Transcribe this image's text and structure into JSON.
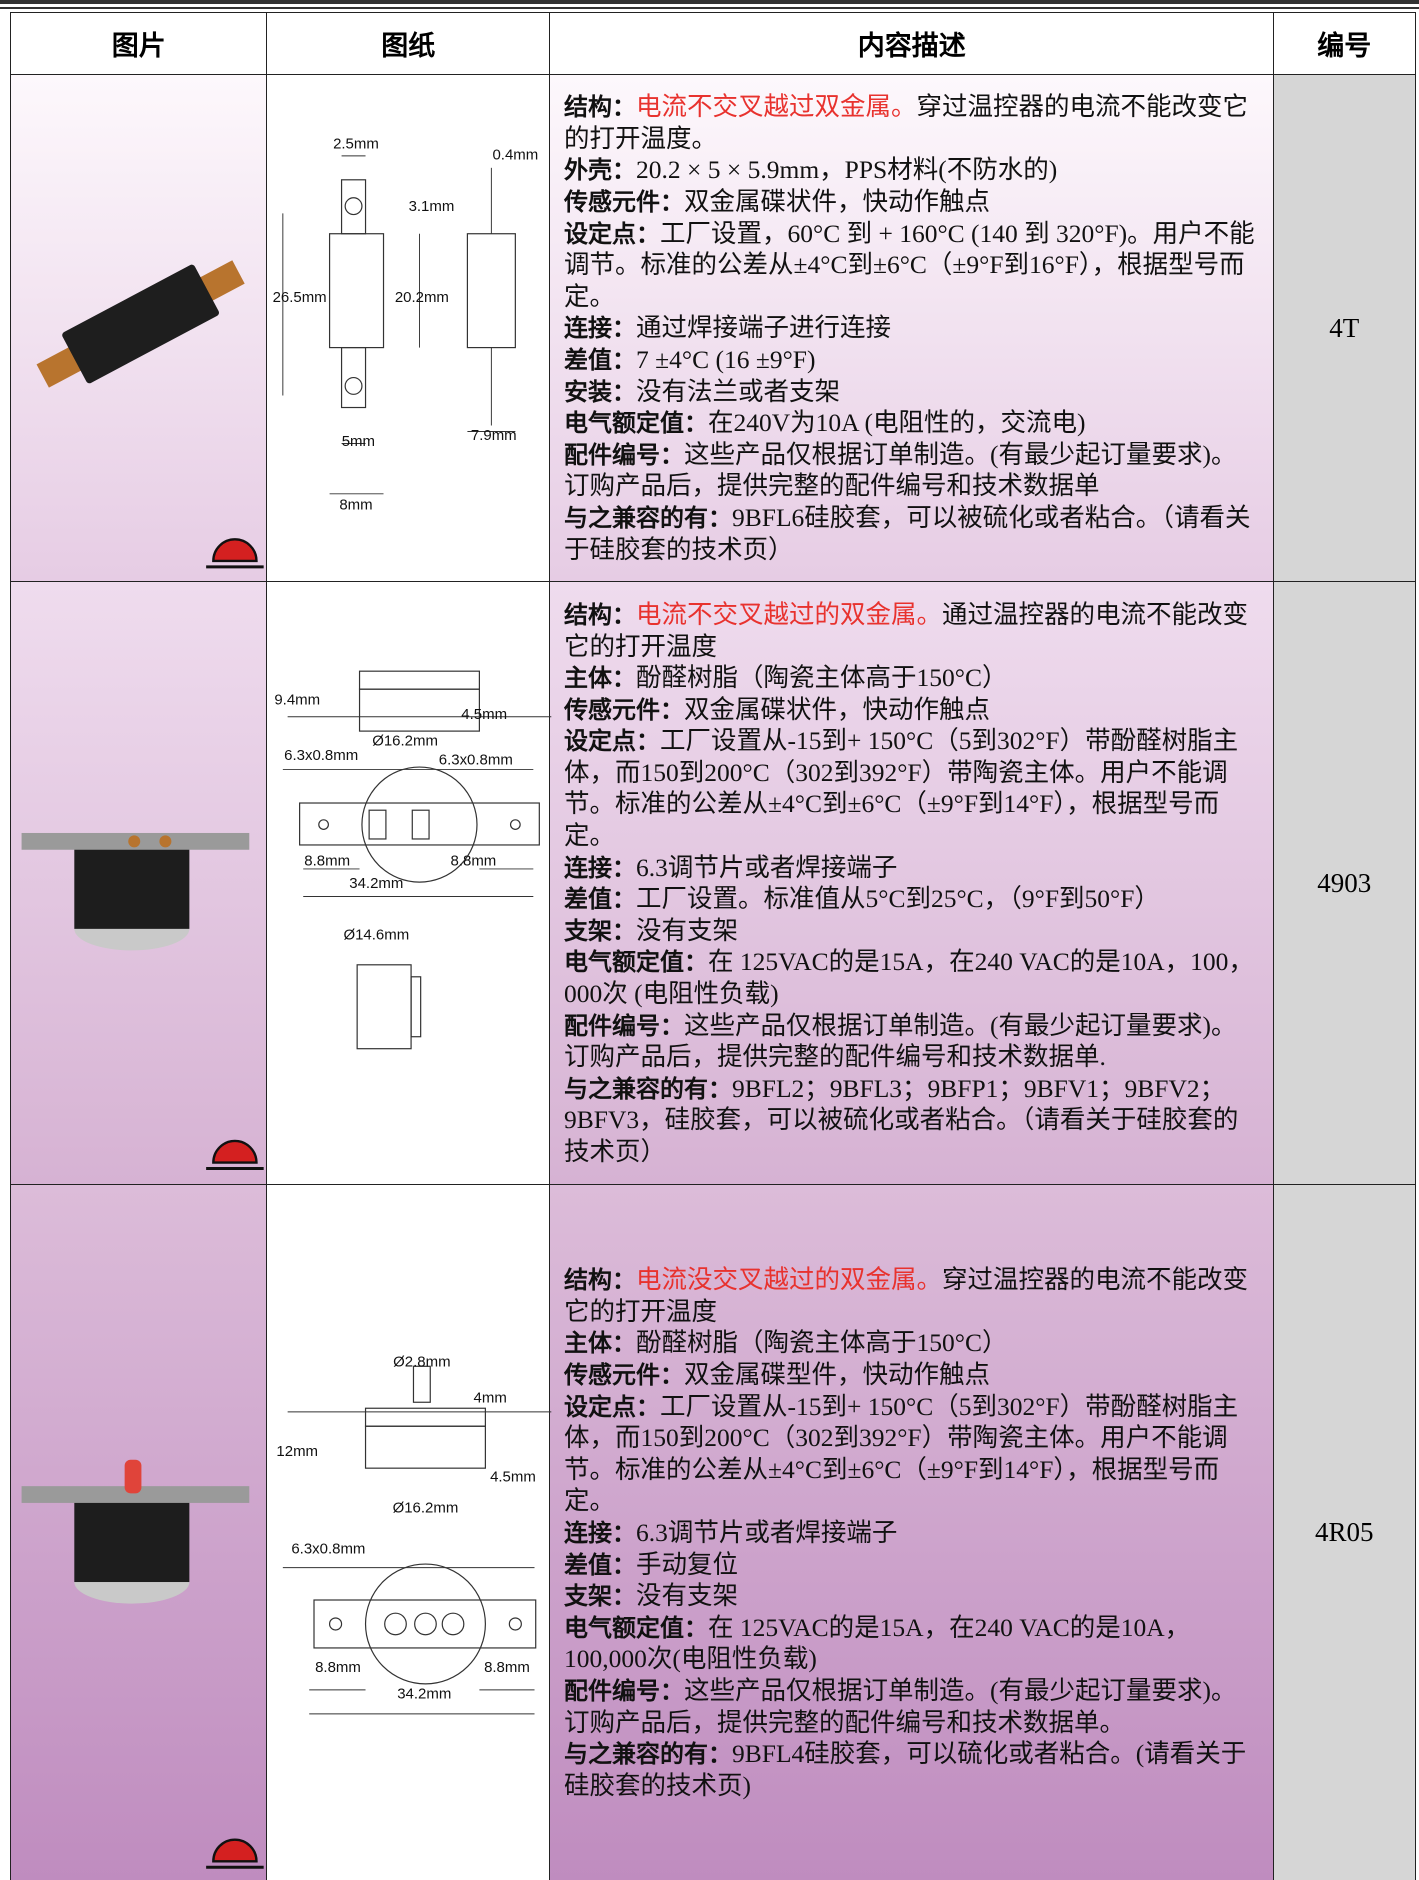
{
  "header": [
    "图片",
    "图纸",
    "内容描述",
    "编号"
  ],
  "rows": [
    {
      "code": "4T",
      "drawing_labels": [
        "2.5mm",
        "0.4mm",
        "3.1mm",
        "26.5mm",
        "20.2mm",
        "5mm",
        "7.9mm",
        "8mm"
      ],
      "items": [
        {
          "label": "结构：",
          "highlight": "电流不交叉越过双金属。",
          "text": "穿过温控器的电流不能改变它的打开温度。"
        },
        {
          "label": "外壳：",
          "text": "20.2 × 5 × 5.9mm，PPS材料(不防水的)"
        },
        {
          "label": "传感元件：",
          "text": "双金属碟状件，快动作触点"
        },
        {
          "label": "设定点：",
          "text": "工厂设置，60°C 到 + 160°C (140 到 320°F)。用户不能调节。标准的公差从±4°C到±6°C（±9°F到16°F），根据型号而定。"
        },
        {
          "label": "连接：",
          "text": "通过焊接端子进行连接"
        },
        {
          "label": "差值：",
          "text": "7 ±4°C (16 ±9°F)"
        },
        {
          "label": "安装：",
          "text": "没有法兰或者支架"
        },
        {
          "label": "电气额定值：",
          "text": "在240V为10A (电阻性的，交流电)"
        },
        {
          "label": "配件编号：",
          "text": "这些产品仅根据订单制造。(有最少起订量要求)。订购产品后，提供完整的配件编号和技术数据单"
        },
        {
          "label": "与之兼容的有：",
          "text": "9BFL6硅胶套，可以被硫化或者粘合。（请看关于硅胶套的技术页）"
        }
      ]
    },
    {
      "code": "4903",
      "drawing_labels": [
        "9.4mm",
        "4.5mm",
        "Ø16.2mm",
        "6.3x0.8mm",
        "6.3x0.8mm",
        "8.8mm",
        "8.8mm",
        "34.2mm",
        "Ø14.6mm"
      ],
      "items": [
        {
          "label": "结构：",
          "highlight": "电流不交叉越过的双金属。",
          "text": "通过温控器的电流不能改变它的打开温度"
        },
        {
          "label": "主体：",
          "text": "酚醛树脂（陶瓷主体高于150°C）"
        },
        {
          "label": "传感元件：",
          "text": "双金属碟状件，快动作触点"
        },
        {
          "label": "设定点：",
          "text": "工厂设置从-15到+ 150°C（5到302°F）带酚醛树脂主体，而150到200°C（302到392°F）带陶瓷主体。用户不能调节。标准的公差从±4°C到±6°C（±9°F到14°F），根据型号而定。"
        },
        {
          "label": "连接：",
          "text": "6.3调节片或者焊接端子"
        },
        {
          "label": "差值：",
          "text": "工厂设置。标准值从5°C到25°C，（9°F到50°F）"
        },
        {
          "label": "支架：",
          "text": "没有支架"
        },
        {
          "label": "电气额定值：",
          "text": "在 125VAC的是15A，在240 VAC的是10A，100，000次 (电阻性负载)"
        },
        {
          "label": "配件编号：",
          "text": "这些产品仅根据订单制造。(有最少起订量要求)。订购产品后，提供完整的配件编号和技术数据单."
        },
        {
          "label": "与之兼容的有：",
          "text": "9BFL2；9BFL3；9BFP1；9BFV1；9BFV2；9BFV3，硅胶套，可以被硫化或者粘合。（请看关于硅胶套的技术页）"
        }
      ]
    },
    {
      "code": "4R05",
      "drawing_labels": [
        "Ø2.8mm",
        "4mm",
        "12mm",
        "4.5mm",
        "Ø16.2mm",
        "6.3x0.8mm",
        "8.8mm",
        "8.8mm",
        "34.2mm"
      ],
      "items": [
        {
          "label": "结构：",
          "highlight": "电流没交叉越过的双金属。",
          "text": "穿过温控器的电流不能改变它的打开温度"
        },
        {
          "label": "主体：",
          "text": "酚醛树脂（陶瓷主体高于150°C）"
        },
        {
          "label": "传感元件：",
          "text": "双金属碟型件，快动作触点"
        },
        {
          "label": "设定点：",
          "text": "工厂设置从-15到+ 150°C（5到302°F）带酚醛树脂主体，而150到200°C（302到392°F）带陶瓷主体。用户不能调节。标准的公差从±4°C到±6°C（±9°F到14°F），根据型号而定。"
        },
        {
          "label": "连接：",
          "text": "6.3调节片或者焊接端子"
        },
        {
          "label": "差值：",
          "text": "手动复位"
        },
        {
          "label": "支架：",
          "text": "没有支架"
        },
        {
          "label": "电气额定值：",
          "text": "在 125VAC的是15A，在240 VAC的是10A，100,000次(电阻性负载)"
        },
        {
          "label": "配件编号：",
          "text": "这些产品仅根据订单制造。(有最少起订量要求)。订购产品后，提供完整的配件编号和技术数据单。"
        },
        {
          "label": "与之兼容的有：",
          "text": "9BFL4硅胶套，可以硫化或者粘合。(请看关于硅胶套的技术页)"
        }
      ]
    }
  ]
}
